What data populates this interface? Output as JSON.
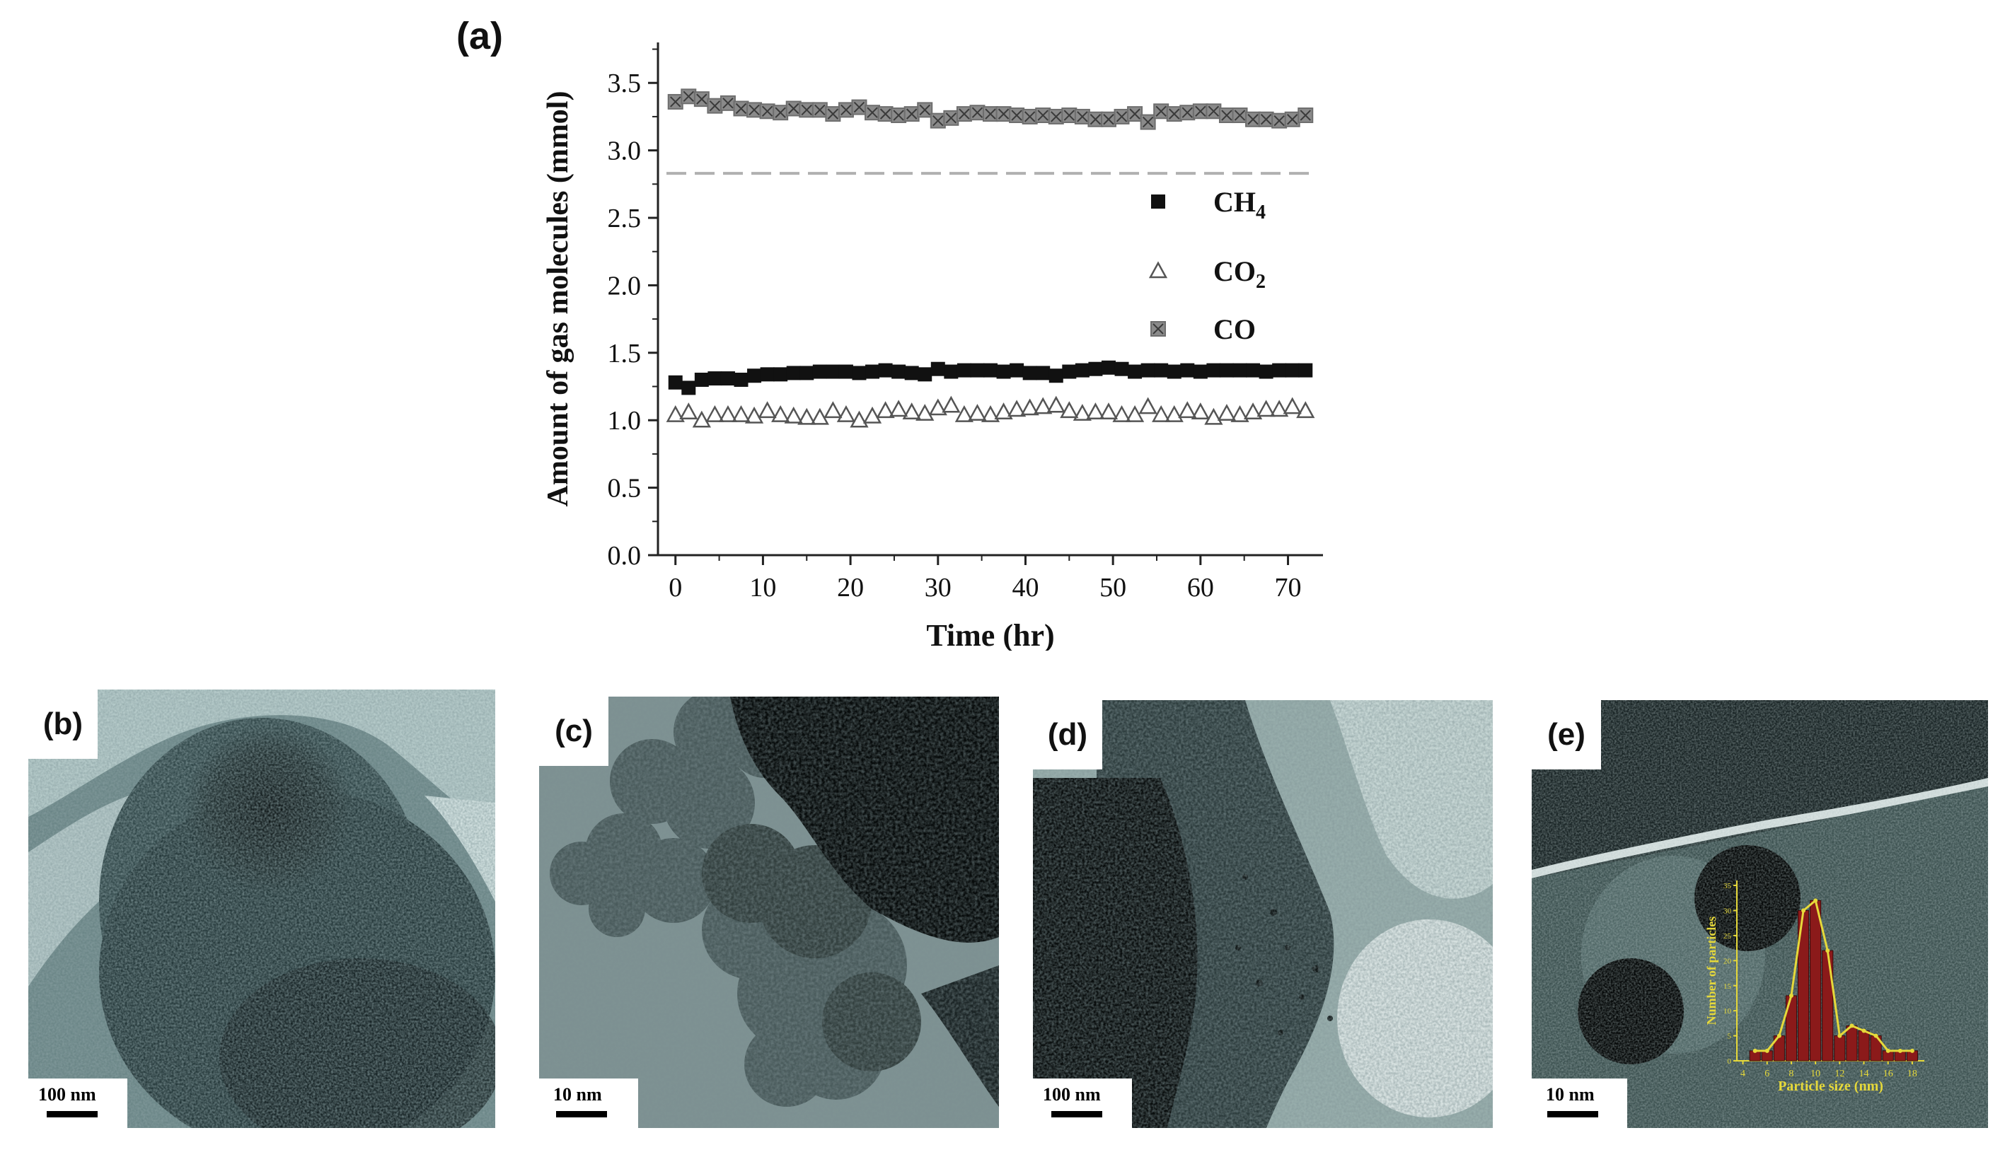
{
  "panels": {
    "a": {
      "label": "(a)"
    },
    "b": {
      "label": "(b)",
      "scale_bar": "100 nm"
    },
    "c": {
      "label": "(c)",
      "scale_bar": "10 nm"
    },
    "d": {
      "label": "(d)",
      "scale_bar": "100 nm"
    },
    "e": {
      "label": "(e)",
      "scale_bar": "10 nm"
    }
  },
  "chart_data": [
    {
      "type": "scatter",
      "title": "",
      "xlabel": "Time (hr)",
      "ylabel": "Amount of gas molecules (mmol)",
      "xlim": [
        -2,
        74
      ],
      "ylim": [
        0,
        3.8
      ],
      "xticks": [
        "0",
        "10",
        "20",
        "30",
        "40",
        "50",
        "60",
        "70"
      ],
      "yticks": [
        "0.0",
        "0.5",
        "1.0",
        "1.5",
        "2.0",
        "2.5",
        "3.0",
        "3.5"
      ],
      "reference_line": {
        "y": 2.83,
        "style": "dashed",
        "color": "#b0b0b0"
      },
      "legend_placement": "right-middle",
      "x": [
        0,
        1.5,
        3,
        4.5,
        6,
        7.5,
        9,
        10.5,
        12,
        13.5,
        15,
        16.5,
        18,
        19.5,
        21,
        22.5,
        24,
        25.5,
        27,
        28.5,
        30,
        31.5,
        33,
        34.5,
        36,
        37.5,
        39,
        40.5,
        42,
        43.5,
        45,
        46.5,
        48,
        49.5,
        51,
        52.5,
        54,
        55.5,
        57,
        58.5,
        60,
        61.5,
        63,
        64.5,
        66,
        67.5,
        69,
        70.5,
        72
      ],
      "series": [
        {
          "name": "CH",
          "name_sub": "4",
          "marker": "filled-square",
          "color": "#111111",
          "values": [
            1.28,
            1.24,
            1.3,
            1.31,
            1.31,
            1.3,
            1.33,
            1.34,
            1.34,
            1.35,
            1.35,
            1.36,
            1.36,
            1.36,
            1.35,
            1.36,
            1.37,
            1.36,
            1.35,
            1.34,
            1.38,
            1.36,
            1.37,
            1.37,
            1.37,
            1.36,
            1.37,
            1.35,
            1.35,
            1.33,
            1.36,
            1.37,
            1.38,
            1.39,
            1.38,
            1.36,
            1.37,
            1.37,
            1.36,
            1.37,
            1.36,
            1.37,
            1.37,
            1.37,
            1.37,
            1.36,
            1.37,
            1.37,
            1.37
          ]
        },
        {
          "name": "CO",
          "name_sub": "2",
          "marker": "open-triangle",
          "color": "#555555",
          "values": [
            1.04,
            1.06,
            1.0,
            1.04,
            1.04,
            1.04,
            1.03,
            1.07,
            1.04,
            1.03,
            1.02,
            1.02,
            1.07,
            1.04,
            1.0,
            1.03,
            1.07,
            1.08,
            1.06,
            1.05,
            1.09,
            1.11,
            1.04,
            1.05,
            1.04,
            1.06,
            1.08,
            1.09,
            1.1,
            1.11,
            1.07,
            1.05,
            1.06,
            1.06,
            1.04,
            1.04,
            1.1,
            1.04,
            1.04,
            1.07,
            1.06,
            1.02,
            1.05,
            1.04,
            1.06,
            1.08,
            1.08,
            1.1,
            1.07
          ]
        },
        {
          "name": "CO",
          "name_sub": "",
          "marker": "hatched-square",
          "color": "#6e6e6e",
          "values": [
            3.36,
            3.4,
            3.38,
            3.33,
            3.35,
            3.31,
            3.3,
            3.29,
            3.28,
            3.31,
            3.3,
            3.3,
            3.27,
            3.3,
            3.32,
            3.28,
            3.27,
            3.26,
            3.27,
            3.3,
            3.22,
            3.24,
            3.27,
            3.28,
            3.27,
            3.27,
            3.26,
            3.25,
            3.26,
            3.25,
            3.26,
            3.25,
            3.23,
            3.23,
            3.25,
            3.27,
            3.21,
            3.29,
            3.27,
            3.28,
            3.29,
            3.29,
            3.26,
            3.26,
            3.23,
            3.23,
            3.22,
            3.23,
            3.26
          ]
        }
      ]
    },
    {
      "type": "bar",
      "panel": "e-inset",
      "title": "",
      "xlabel": "Particle size (nm)",
      "ylabel": "Number of particles",
      "xlim": [
        3.5,
        19
      ],
      "ylim": [
        0,
        36
      ],
      "xticks": [
        "4",
        "6",
        "8",
        "10",
        "12",
        "14",
        "16",
        "18"
      ],
      "yticks": [
        "0",
        "5",
        "10",
        "15",
        "20",
        "25",
        "30",
        "35"
      ],
      "categories": [
        "5",
        "6",
        "7",
        "8",
        "9",
        "10",
        "11",
        "12",
        "13",
        "14",
        "15",
        "16",
        "17",
        "18"
      ],
      "values": [
        2,
        2,
        5,
        13,
        30,
        32,
        22,
        5,
        7,
        6,
        5,
        2,
        2,
        2
      ]
    }
  ]
}
